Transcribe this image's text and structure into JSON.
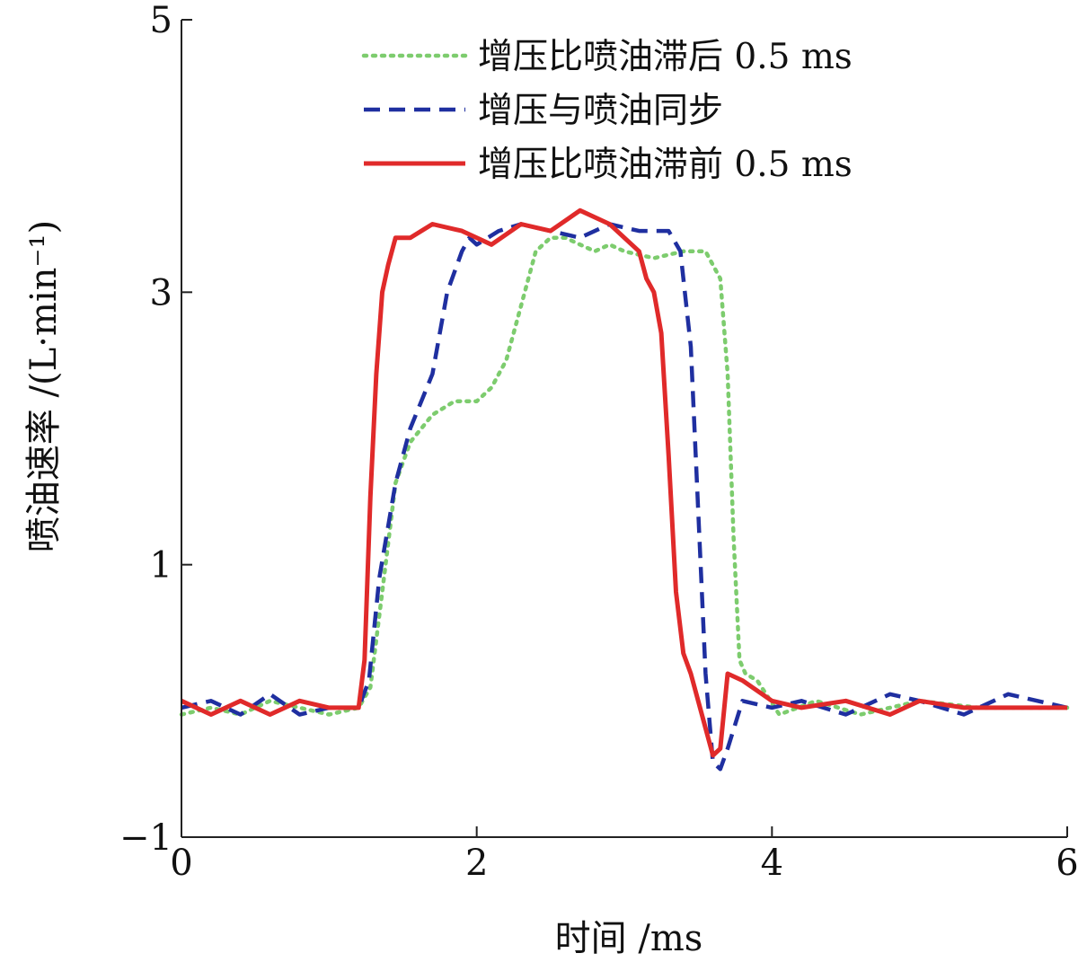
{
  "chart_data": {
    "type": "line",
    "title": "",
    "xlabel": "时间 /ms",
    "ylabel": "喷油速率 /(L·min⁻¹)",
    "xlim": [
      0,
      6
    ],
    "ylim": [
      -1,
      5
    ],
    "xticks": [
      0,
      2,
      4,
      6
    ],
    "yticks": [
      -1,
      1,
      3,
      5
    ],
    "grid": false,
    "legend_position": "top-right",
    "series": [
      {
        "name": "增压比喷油滞后 0.5 ms",
        "color": "#7dcc6e",
        "style": "dotted",
        "x": [
          0,
          0.2,
          0.4,
          0.6,
          0.8,
          1.0,
          1.2,
          1.28,
          1.36,
          1.45,
          1.55,
          1.7,
          1.85,
          2.0,
          2.1,
          2.2,
          2.3,
          2.4,
          2.5,
          2.6,
          2.7,
          2.8,
          2.9,
          3.0,
          3.2,
          3.4,
          3.55,
          3.65,
          3.7,
          3.74,
          3.78,
          3.82,
          3.9,
          4.05,
          4.3,
          4.6,
          5.0,
          5.4,
          5.8,
          6.0
        ],
        "y": [
          -0.1,
          -0.05,
          -0.1,
          0.0,
          -0.05,
          -0.1,
          -0.05,
          0.1,
          0.8,
          1.6,
          1.9,
          2.1,
          2.2,
          2.2,
          2.3,
          2.5,
          2.9,
          3.3,
          3.4,
          3.4,
          3.35,
          3.3,
          3.35,
          3.3,
          3.25,
          3.3,
          3.3,
          3.1,
          2.4,
          1.2,
          0.3,
          0.2,
          0.15,
          -0.1,
          0.0,
          -0.1,
          0.0,
          -0.05,
          -0.05,
          -0.05
        ]
      },
      {
        "name": "增压与喷油同步",
        "color": "#1f2fa0",
        "style": "dashed",
        "x": [
          0,
          0.2,
          0.4,
          0.6,
          0.8,
          1.0,
          1.2,
          1.27,
          1.34,
          1.45,
          1.55,
          1.7,
          1.8,
          1.9,
          1.95,
          2.0,
          2.15,
          2.3,
          2.5,
          2.7,
          2.9,
          3.1,
          3.2,
          3.3,
          3.38,
          3.45,
          3.5,
          3.55,
          3.6,
          3.65,
          3.7,
          3.8,
          4.0,
          4.2,
          4.5,
          4.8,
          5.0,
          5.3,
          5.6,
          6.0
        ],
        "y": [
          -0.05,
          0.0,
          -0.1,
          0.05,
          -0.1,
          -0.05,
          -0.05,
          0.15,
          0.9,
          1.6,
          2.0,
          2.4,
          3.0,
          3.3,
          3.4,
          3.35,
          3.45,
          3.5,
          3.45,
          3.4,
          3.5,
          3.45,
          3.45,
          3.45,
          3.3,
          2.6,
          1.4,
          0.2,
          -0.45,
          -0.5,
          -0.35,
          0.0,
          -0.05,
          0.0,
          -0.1,
          0.05,
          0.0,
          -0.1,
          0.05,
          -0.05
        ]
      },
      {
        "name": "增压比喷油滞前 0.5 ms",
        "color": "#e02a2a",
        "style": "solid",
        "x": [
          0,
          0.2,
          0.4,
          0.6,
          0.8,
          1.0,
          1.2,
          1.24,
          1.28,
          1.32,
          1.36,
          1.4,
          1.45,
          1.55,
          1.7,
          1.9,
          2.1,
          2.3,
          2.5,
          2.7,
          2.9,
          3.0,
          3.1,
          3.15,
          3.2,
          3.25,
          3.3,
          3.35,
          3.4,
          3.45,
          3.5,
          3.55,
          3.6,
          3.65,
          3.7,
          3.8,
          4.0,
          4.2,
          4.5,
          4.8,
          5.0,
          5.3,
          5.6,
          6.0
        ],
        "y": [
          0.0,
          -0.1,
          0.0,
          -0.1,
          0.0,
          -0.05,
          -0.05,
          0.3,
          1.5,
          2.4,
          3.0,
          3.2,
          3.4,
          3.4,
          3.5,
          3.45,
          3.35,
          3.5,
          3.45,
          3.6,
          3.5,
          3.4,
          3.3,
          3.1,
          3.0,
          2.7,
          1.8,
          0.8,
          0.35,
          0.2,
          0.0,
          -0.2,
          -0.4,
          -0.35,
          0.2,
          0.15,
          0.0,
          -0.05,
          0.0,
          -0.1,
          0.0,
          -0.05,
          -0.05,
          -0.05
        ]
      }
    ]
  }
}
